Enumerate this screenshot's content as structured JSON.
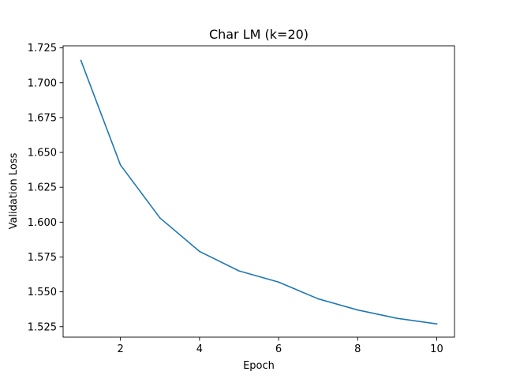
{
  "chart_data": {
    "type": "line",
    "title": "Char LM (k=20)",
    "xlabel": "Epoch",
    "ylabel": "Validation Loss",
    "xlim": [
      0.55,
      10.45
    ],
    "ylim": [
      1.5175,
      1.7265
    ],
    "x_ticks": [
      2,
      4,
      6,
      8,
      10
    ],
    "y_ticks": [
      1.525,
      1.55,
      1.575,
      1.6,
      1.625,
      1.65,
      1.675,
      1.7,
      1.725
    ],
    "y_tick_labels": [
      "1.525",
      "1.550",
      "1.575",
      "1.600",
      "1.625",
      "1.650",
      "1.675",
      "1.700",
      "1.725"
    ],
    "grid": false,
    "series": [
      {
        "color": "#1f77b4",
        "x": [
          1,
          2,
          3,
          4,
          5,
          6,
          7,
          8,
          9,
          10
        ],
        "y": [
          1.716,
          1.641,
          1.603,
          1.579,
          1.565,
          1.557,
          1.545,
          1.537,
          1.531,
          1.527
        ]
      }
    ]
  }
}
